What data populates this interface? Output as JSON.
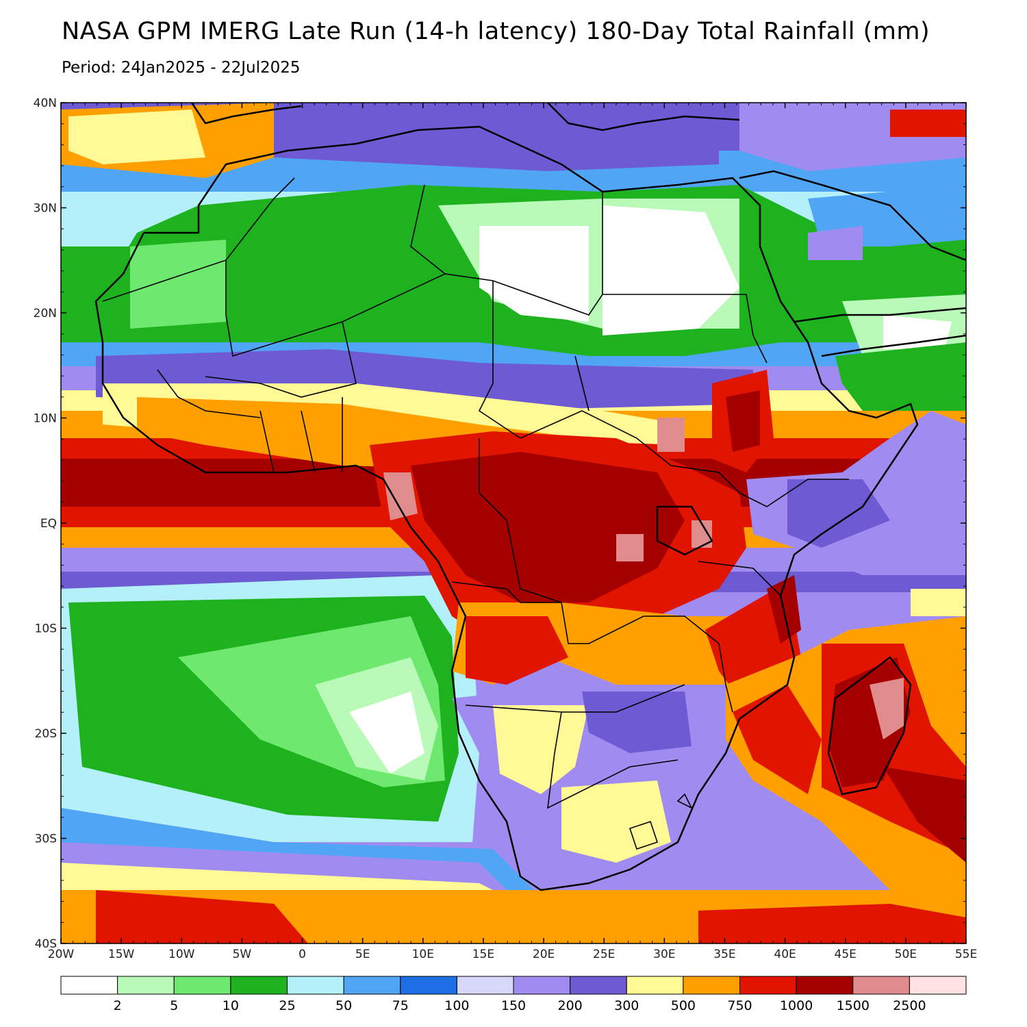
{
  "title": "NASA GPM IMERG Late Run (14-h latency) 180-Day Total Rainfall (mm)",
  "subtitle": "Period: 24Jan2025 - 22Jul2025",
  "axes": {
    "x_ticks": [
      "20W",
      "15W",
      "10W",
      "5W",
      "0",
      "5E",
      "10E",
      "15E",
      "20E",
      "25E",
      "30E",
      "35E",
      "40E",
      "45E",
      "50E",
      "55E"
    ],
    "y_ticks": [
      "40N",
      "30N",
      "20N",
      "10N",
      "EQ",
      "10S",
      "20S",
      "30S",
      "40S"
    ]
  },
  "colorbar": {
    "colors": [
      "#ffffff",
      "#b9fab9",
      "#6fe86f",
      "#1eb21e",
      "#b4f0fa",
      "#50a5f5",
      "#1e6ee6",
      "#d7d7fa",
      "#a08cf0",
      "#6e5ad2",
      "#fffa96",
      "#ffa000",
      "#e11400",
      "#a50000",
      "#e18c8c",
      "#ffe1e1"
    ],
    "labels": [
      "2",
      "5",
      "10",
      "25",
      "50",
      "75",
      "100",
      "150",
      "200",
      "300",
      "500",
      "750",
      "1000",
      "1500",
      "2500"
    ]
  },
  "colors": {
    "white": "#ffffff",
    "lightgreen": "#b9fab9",
    "green": "#6fe86f",
    "darkgreen": "#1eb21e",
    "lightblue": "#b4f0fa",
    "blue": "#50a5f5",
    "darkblue": "#1e6ee6",
    "lavender": "#d7d7fa",
    "purple": "#a08cf0",
    "violet": "#6e5ad2",
    "yellow": "#fffa96",
    "orange": "#ffa000",
    "red": "#e11400",
    "darkred": "#a50000",
    "pink": "#e18c8c",
    "lightpink": "#ffe1e1"
  }
}
